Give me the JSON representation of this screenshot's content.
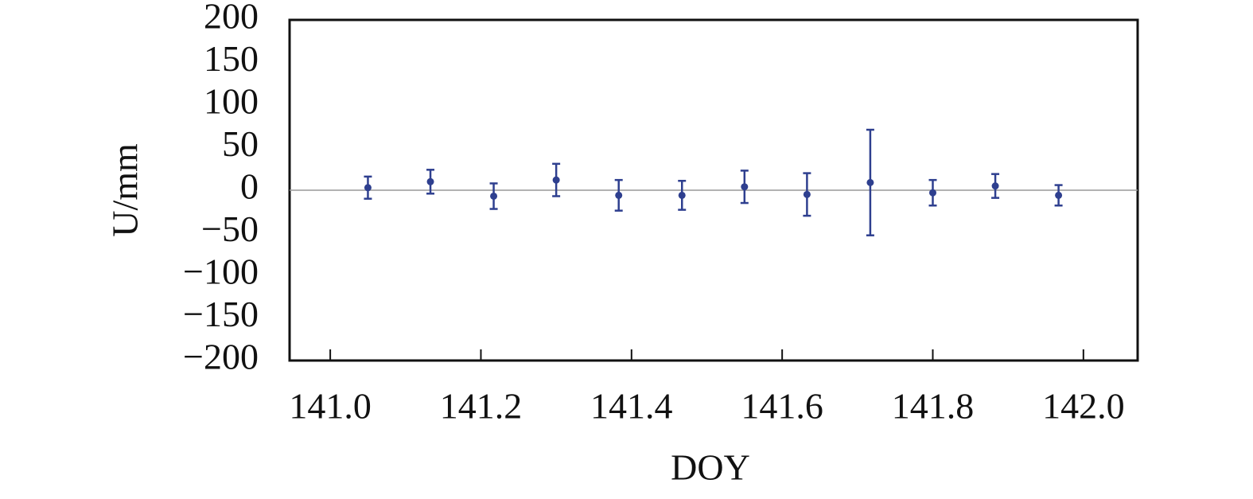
{
  "chart_data": {
    "type": "errorbar",
    "x_label": "DOY",
    "y_label": "U/mm",
    "x": [
      141.05,
      141.133,
      141.217,
      141.3,
      141.383,
      141.467,
      141.55,
      141.633,
      141.717,
      141.8,
      141.883,
      141.967
    ],
    "series": [
      {
        "color": "#2e3f8f",
        "values": [
          3,
          10,
          -7,
          12,
          -6,
          -6,
          4,
          -5,
          9,
          -3,
          5,
          -6
        ],
        "errors": [
          13,
          14,
          15,
          19,
          18,
          17,
          19,
          25,
          62,
          15,
          14,
          12
        ]
      }
    ],
    "xlim": [
      140.946,
      142.072
    ],
    "xticks": [
      {
        "value": 141,
        "label": "141.0"
      },
      141.2,
      141.4,
      141.6,
      141.8,
      {
        "value": 142,
        "label": "142.0"
      }
    ],
    "ylim": [
      -200,
      200
    ],
    "yticks": [
      {
        "value": -200,
        "label": "−200"
      },
      {
        "value": -150,
        "label": "−150"
      },
      {
        "value": -100,
        "label": "−100"
      },
      {
        "value": -50,
        "label": "−50"
      },
      0,
      50,
      100,
      150,
      200
    ],
    "zero_line": true
  }
}
